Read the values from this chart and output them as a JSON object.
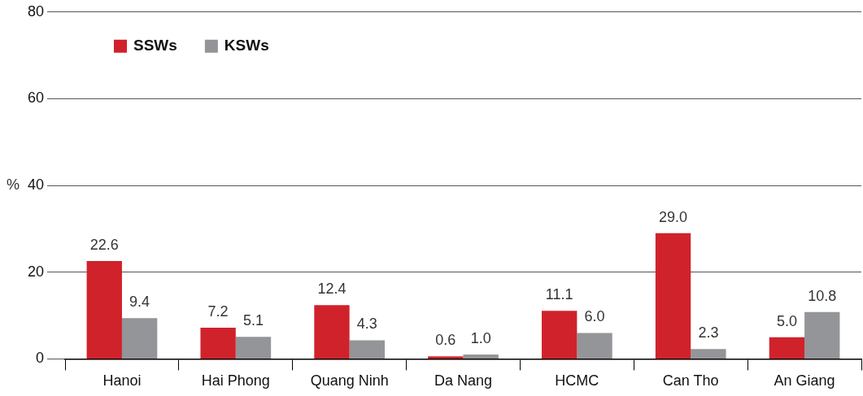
{
  "chart_data": {
    "type": "bar",
    "ylabel": "%",
    "categories": [
      "Hanoi",
      "Hai Phong",
      "Quang Ninh",
      "Da Nang",
      "HCMC",
      "Can Tho",
      "An Giang"
    ],
    "series": [
      {
        "name": "SSWs",
        "color": "#d0222b",
        "values": [
          22.6,
          7.2,
          12.4,
          0.6,
          11.1,
          29.0,
          5.0
        ],
        "value_labels": [
          "22.6",
          "7.2",
          "12.4",
          "0.6",
          "11.1",
          "29.0",
          "5.0"
        ]
      },
      {
        "name": "KSWs",
        "color": "#939598",
        "values": [
          9.4,
          5.1,
          4.3,
          1.0,
          6.0,
          2.3,
          10.8
        ],
        "value_labels": [
          "9.4",
          "5.1",
          "4.3",
          "1.0",
          "6.0",
          "2.3",
          "10.8"
        ]
      }
    ],
    "ylim": [
      0,
      80
    ],
    "yticks": [
      0,
      20,
      40,
      60,
      80
    ],
    "grid": "y",
    "legend": "top left"
  }
}
